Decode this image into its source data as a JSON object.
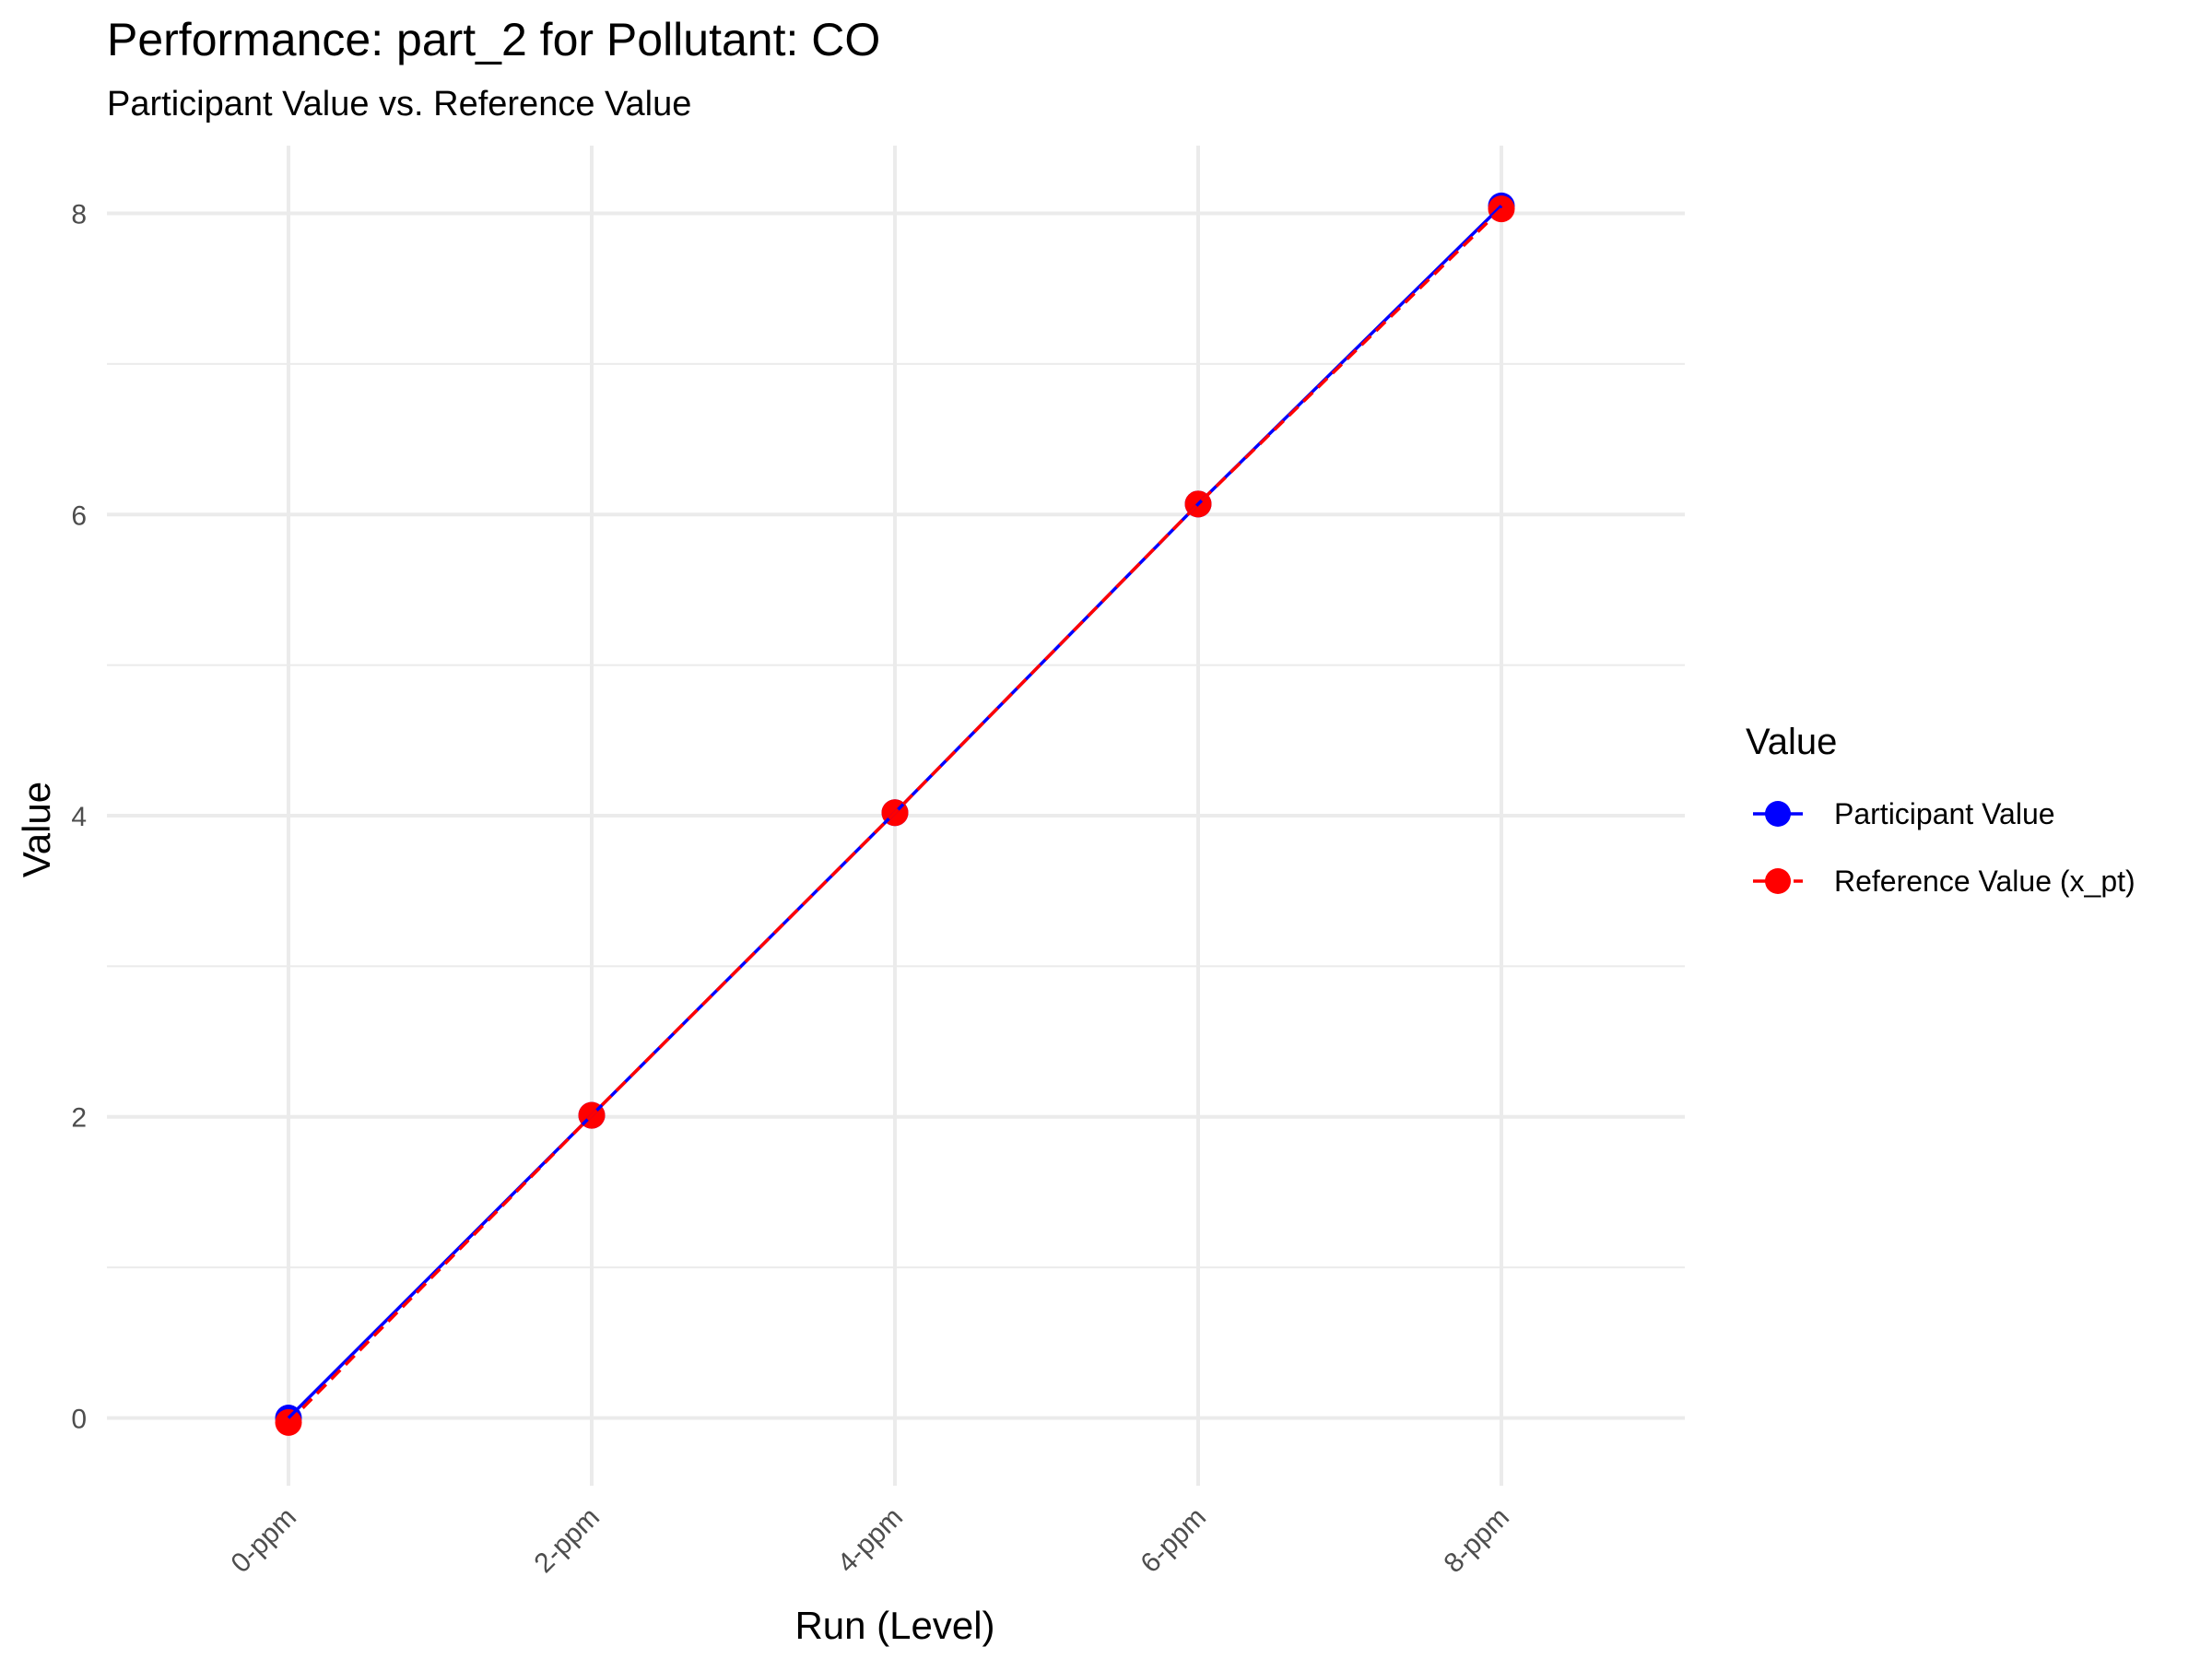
{
  "chart_data": {
    "type": "line",
    "title": "Performance: part_2 for Pollutant: CO",
    "subtitle": "Participant Value vs. Reference Value",
    "xlabel": "Run (Level)",
    "ylabel": "Value",
    "categories": [
      "0-ppm",
      "2-ppm",
      "4-ppm",
      "6-ppm",
      "8-ppm"
    ],
    "yticks": [
      0,
      2,
      4,
      6,
      8
    ],
    "ylim": [
      -0.45,
      8.45
    ],
    "grid": true,
    "legend": {
      "title": "Value",
      "position": "right"
    },
    "series": [
      {
        "name": "Participant Value",
        "values": [
          0.0,
          2.01,
          4.02,
          6.07,
          8.05
        ],
        "color": "#0000ff",
        "line_style": "solid"
      },
      {
        "name": "Reference Value (x_pt)",
        "values": [
          -0.03,
          2.01,
          4.02,
          6.07,
          8.03
        ],
        "color": "#ff0000",
        "line_style": "dashed"
      }
    ]
  }
}
